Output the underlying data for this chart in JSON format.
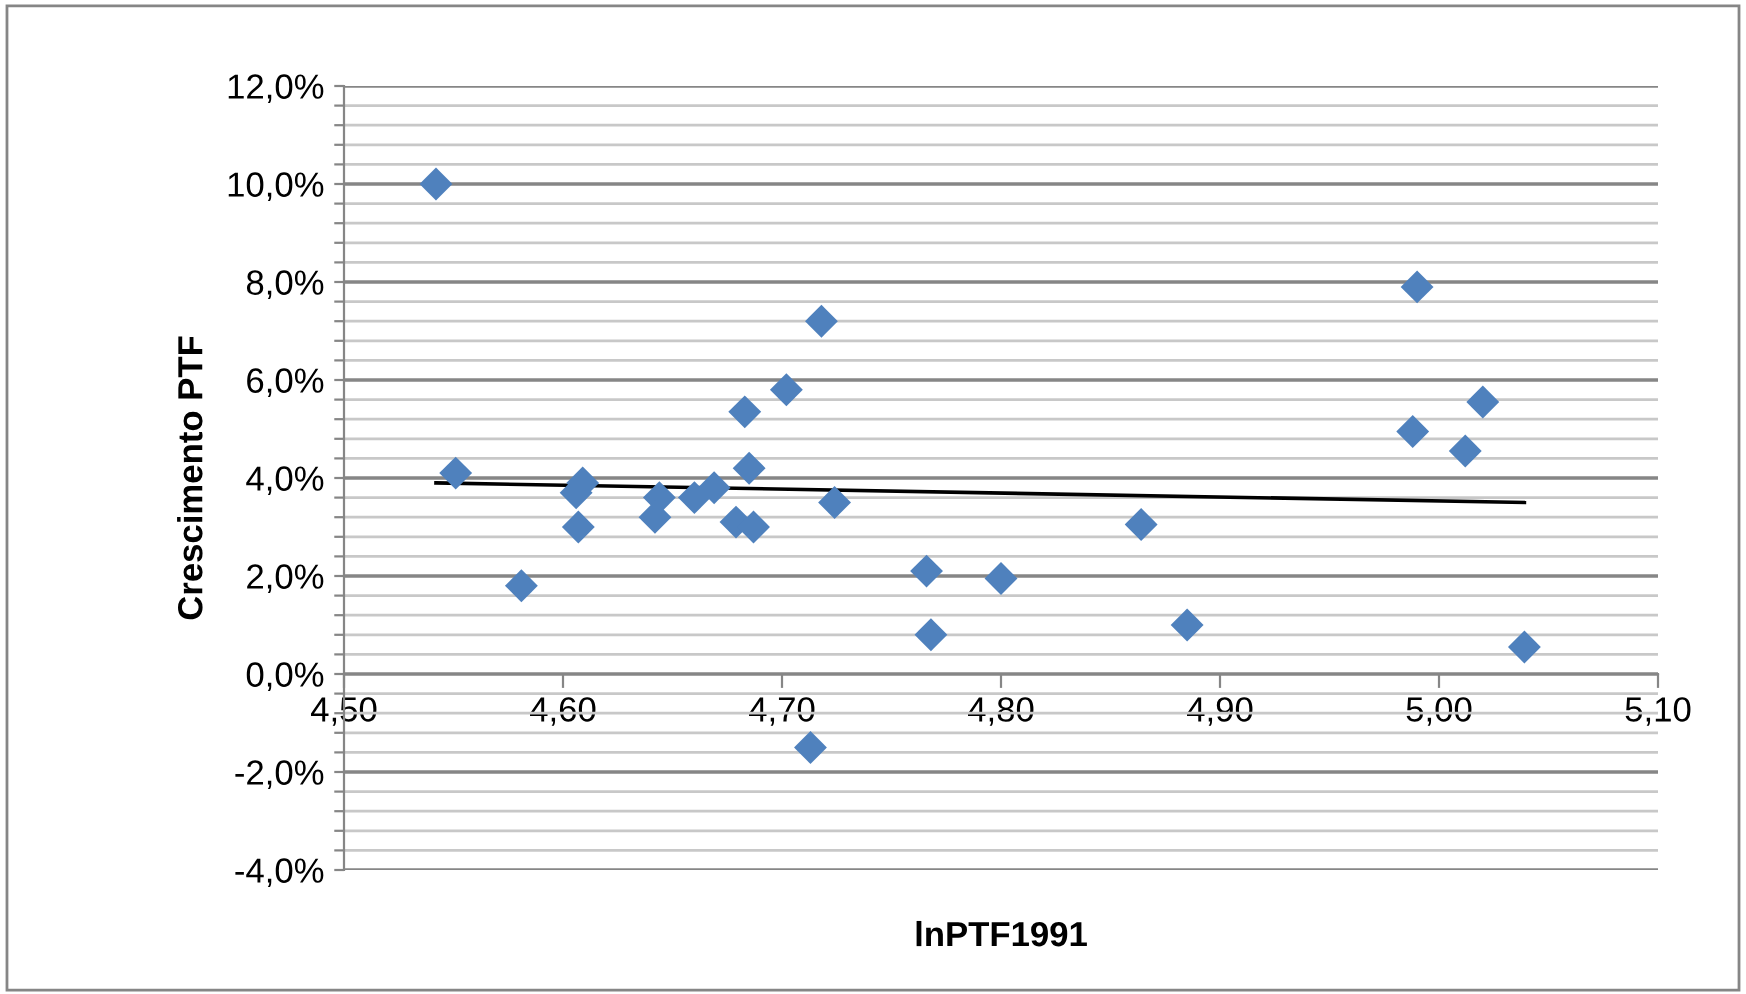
{
  "chart_data": {
    "type": "scatter",
    "xlabel": "lnPTF1991",
    "ylabel": "Crescimento PTF",
    "series": [
      {
        "color": "#4f81bd",
        "marker": "diamond",
        "x": [
          4.542,
          4.551,
          4.581,
          4.609,
          4.606,
          4.607,
          4.644,
          4.642,
          4.66,
          4.669,
          4.679,
          4.687,
          4.685,
          4.683,
          4.702,
          4.718,
          4.724,
          4.713,
          4.766,
          4.768,
          4.8,
          4.864,
          4.885,
          4.99,
          4.988,
          5.012,
          5.02,
          5.039
        ],
        "values": [
          10.0,
          4.1,
          1.8,
          3.9,
          3.7,
          3.0,
          3.6,
          3.2,
          3.6,
          3.8,
          3.1,
          3.0,
          4.2,
          5.35,
          5.8,
          7.2,
          3.5,
          -1.5,
          2.1,
          0.8,
          1.95,
          3.05,
          1.0,
          7.9,
          4.95,
          4.55,
          5.55,
          0.55
        ]
      },
      {
        "type": "line",
        "color": "#000000",
        "marker": "none",
        "x": [
          4.542,
          5.039
        ],
        "values": [
          3.9,
          3.5
        ]
      }
    ],
    "xlim": [
      4.5,
      5.1
    ],
    "xticks": [
      {
        "value": 4.5,
        "label": "4,50"
      },
      {
        "value": 4.6,
        "label": "4,60"
      },
      {
        "value": 4.7,
        "label": "4,70"
      },
      {
        "value": 4.8,
        "label": "4,80"
      },
      {
        "value": 4.9,
        "label": "4,90"
      },
      {
        "value": 5.0,
        "label": "5,00"
      },
      {
        "value": 5.1,
        "label": "5,10"
      }
    ],
    "ylim": [
      -4,
      12
    ],
    "yticks": [
      {
        "value": -4,
        "label": "-4,0%"
      },
      {
        "value": -3.6,
        "label": null
      },
      {
        "value": -3.2,
        "label": null
      },
      {
        "value": -2.8,
        "label": null
      },
      {
        "value": -2.4,
        "label": null
      },
      {
        "value": -2,
        "label": "-2,0%"
      },
      {
        "value": -1.6,
        "label": null
      },
      {
        "value": -1.2,
        "label": null
      },
      {
        "value": -0.8,
        "label": null
      },
      {
        "value": -0.4,
        "label": null
      },
      {
        "value": 0,
        "label": "0,0%"
      },
      {
        "value": 0.4,
        "label": null
      },
      {
        "value": 0.8,
        "label": null
      },
      {
        "value": 1.2,
        "label": null
      },
      {
        "value": 1.6,
        "label": null
      },
      {
        "value": 2,
        "label": "2,0%"
      },
      {
        "value": 2.4,
        "label": null
      },
      {
        "value": 2.8,
        "label": null
      },
      {
        "value": 3.2,
        "label": null
      },
      {
        "value": 3.6,
        "label": null
      },
      {
        "value": 4,
        "label": "4,0%"
      },
      {
        "value": 4.4,
        "label": null
      },
      {
        "value": 4.8,
        "label": null
      },
      {
        "value": 5.2,
        "label": null
      },
      {
        "value": 5.6,
        "label": null
      },
      {
        "value": 6,
        "label": "6,0%"
      },
      {
        "value": 6.4,
        "label": null
      },
      {
        "value": 6.8,
        "label": null
      },
      {
        "value": 7.2,
        "label": null
      },
      {
        "value": 7.6,
        "label": null
      },
      {
        "value": 8,
        "label": "8,0%"
      },
      {
        "value": 8.4,
        "label": null
      },
      {
        "value": 8.8,
        "label": null
      },
      {
        "value": 9.2,
        "label": null
      },
      {
        "value": 9.6,
        "label": null
      },
      {
        "value": 10,
        "label": "10,0%"
      },
      {
        "value": 10.4,
        "label": null
      },
      {
        "value": 10.8,
        "label": null
      },
      {
        "value": 11.2,
        "label": null
      },
      {
        "value": 11.6,
        "label": null
      },
      {
        "value": 12,
        "label": "12,0%"
      }
    ],
    "grid": "y",
    "legend": false
  }
}
